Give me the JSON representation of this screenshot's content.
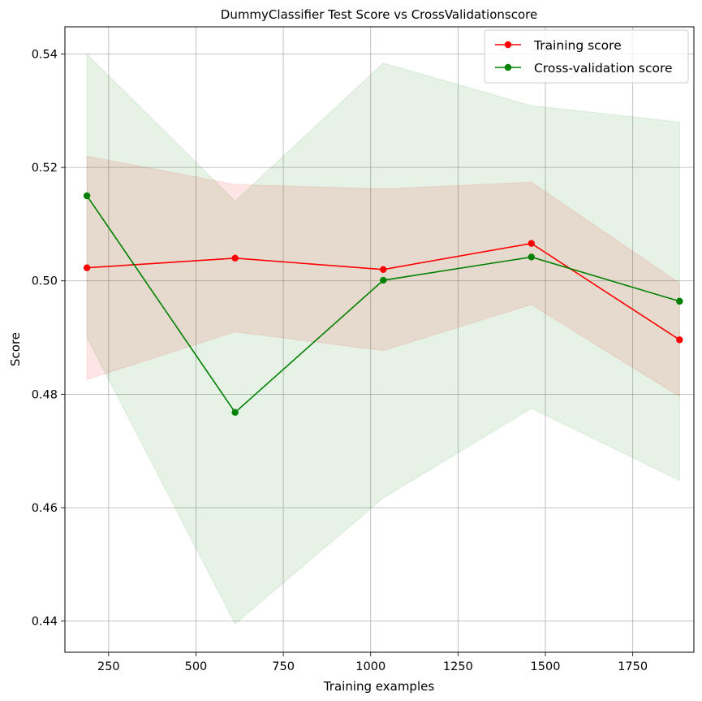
{
  "chart_data": {
    "type": "line",
    "title": "DummyClassifier Test Score vs CrossValidationscore",
    "xlabel": "Training examples",
    "ylabel": "Score",
    "xlim": [
      125,
      1925
    ],
    "ylim": [
      0.4345,
      0.5448
    ],
    "xticks": [
      250,
      500,
      750,
      1000,
      1250,
      1500,
      1750
    ],
    "yticks": [
      0.44,
      0.46,
      0.48,
      0.5,
      0.52,
      0.54
    ],
    "ytick_labels": [
      "0.44",
      "0.46",
      "0.48",
      "0.50",
      "0.52",
      "0.54"
    ],
    "grid": true,
    "legend_position": "top-right",
    "x": [
      188,
      612,
      1036,
      1460,
      1884
    ],
    "series": [
      {
        "name": "Training score",
        "color": "#ff0000",
        "band_color": "#ff0000",
        "values": [
          0.5023,
          0.504,
          0.502,
          0.5066,
          0.4896
        ],
        "band_lower": [
          0.4826,
          0.491,
          0.4877,
          0.4958,
          0.4796
        ],
        "band_upper": [
          0.522,
          0.517,
          0.5162,
          0.5174,
          0.4996
        ]
      },
      {
        "name": "Cross-validation score",
        "color": "#008000",
        "band_color": "#008000",
        "values": [
          0.515,
          0.4768,
          0.5001,
          0.5042,
          0.4964
        ],
        "band_lower": [
          0.49,
          0.4395,
          0.4617,
          0.4775,
          0.4648
        ],
        "band_upper": [
          0.54,
          0.5141,
          0.5384,
          0.5309,
          0.528
        ]
      }
    ]
  }
}
